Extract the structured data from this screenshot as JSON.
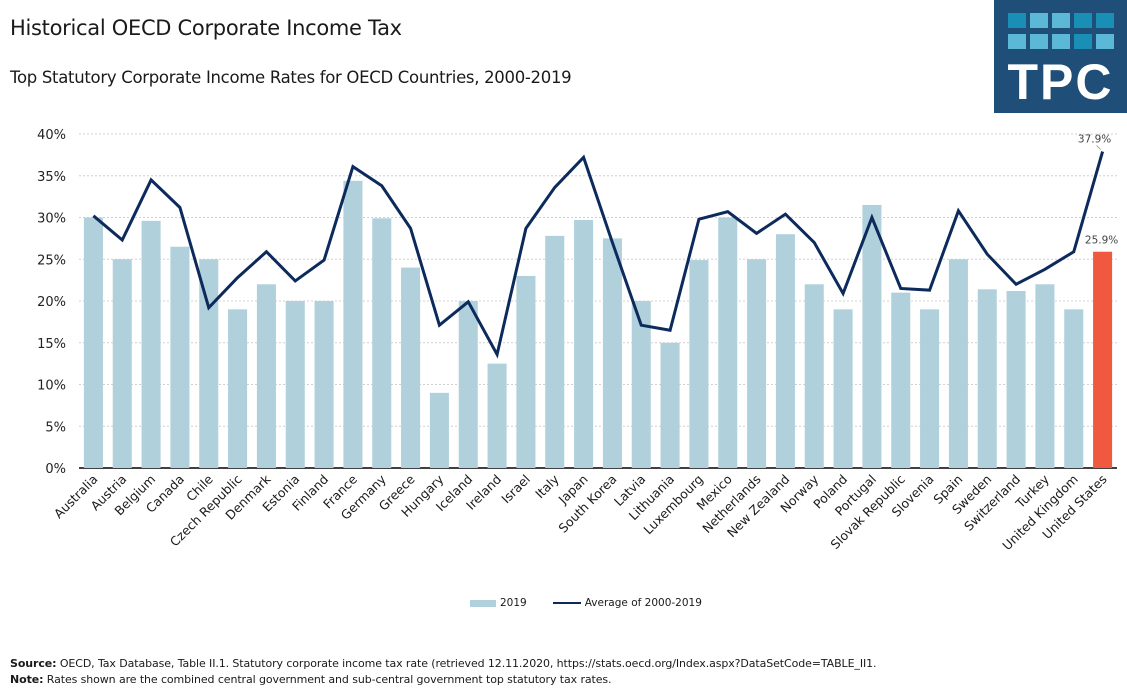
{
  "header": {
    "title": "Historical OECD Corporate Income Tax",
    "subtitle": "Top Statutory Corporate Income Rates for OECD Countries, 2000-2019"
  },
  "logo": {
    "text": "TPC",
    "background": "#1f4e79",
    "squares_light": "#5bb8d6",
    "squares_dark": "#1a8fb5"
  },
  "legend": {
    "items": [
      {
        "label": "2019",
        "type": "bar",
        "color": "#b0d0dc"
      },
      {
        "label": "Average of 2000-2019",
        "type": "line",
        "color": "#0c2a5c"
      }
    ]
  },
  "footer": {
    "source_label": "Source:",
    "source_text": "OECD, Tax Database, Table II.1. Statutory corporate income tax rate (retrieved 12.11.2020, https://stats.oecd.org/Index.aspx?DataSetCode=TABLE_II1.",
    "note_label": "Note:",
    "note_text": "Rates shown are the combined central government and sub-central government top statutory tax rates."
  },
  "chart_data": {
    "type": "bar",
    "title": "Historical OECD Corporate Income Tax",
    "subtitle": "Top Statutory Corporate Income Rates for OECD Countries, 2000-2019",
    "xlabel": "",
    "ylabel": "",
    "ylim": [
      0,
      40
    ],
    "yticks": [
      0,
      5,
      10,
      15,
      20,
      25,
      30,
      35,
      40
    ],
    "ytick_labels": [
      "0%",
      "5%",
      "10%",
      "15%",
      "20%",
      "25%",
      "30%",
      "35%",
      "40%"
    ],
    "grid": true,
    "legend_position": "bottom",
    "colors": {
      "bar": "#b0d0dc",
      "highlight_bar": "#f0583f",
      "line": "#0c2a5c",
      "grid": "#d0d0d0",
      "axis": "#000000"
    },
    "highlight_category": "United States",
    "categories": [
      "Australia",
      "Austria",
      "Belgium",
      "Canada",
      "Chile",
      "Czech Republic",
      "Denmark",
      "Estonia",
      "Finland",
      "France",
      "Germany",
      "Greece",
      "Hungary",
      "Iceland",
      "Ireland",
      "Israel",
      "Italy",
      "Japan",
      "South Korea",
      "Latvia",
      "Lithuania",
      "Luxembourg",
      "Mexico",
      "Netherlands",
      "New Zealand",
      "Norway",
      "Poland",
      "Portugal",
      "Slovak Republic",
      "Slovenia",
      "Spain",
      "Sweden",
      "Switzerland",
      "Turkey",
      "United Kingdom",
      "United States"
    ],
    "series": [
      {
        "name": "2019",
        "type": "bar",
        "values": [
          30.0,
          25.0,
          29.6,
          26.5,
          25.0,
          19.0,
          22.0,
          20.0,
          20.0,
          34.4,
          29.9,
          24.0,
          9.0,
          20.0,
          12.5,
          23.0,
          27.8,
          29.7,
          27.5,
          20.0,
          15.0,
          24.9,
          30.0,
          25.0,
          28.0,
          22.0,
          19.0,
          31.5,
          21.0,
          19.0,
          25.0,
          21.4,
          21.2,
          22.0,
          19.0,
          25.9
        ]
      },
      {
        "name": "Average of 2000-2019",
        "type": "line",
        "values": [
          30.2,
          27.3,
          34.5,
          31.2,
          19.2,
          22.8,
          25.9,
          22.4,
          24.9,
          36.1,
          33.8,
          28.7,
          17.1,
          19.9,
          13.6,
          28.7,
          33.6,
          37.2,
          27.0,
          17.1,
          16.5,
          29.8,
          30.7,
          28.1,
          30.4,
          27.0,
          20.9,
          30.0,
          21.5,
          21.3,
          30.8,
          25.6,
          22.0,
          23.8,
          25.9,
          37.9
        ]
      }
    ],
    "annotations": [
      {
        "target": "United States",
        "series": "2019",
        "text": "25.9%"
      },
      {
        "target": "United States",
        "series": "Average of 2000-2019",
        "text": "37.9%"
      }
    ]
  }
}
